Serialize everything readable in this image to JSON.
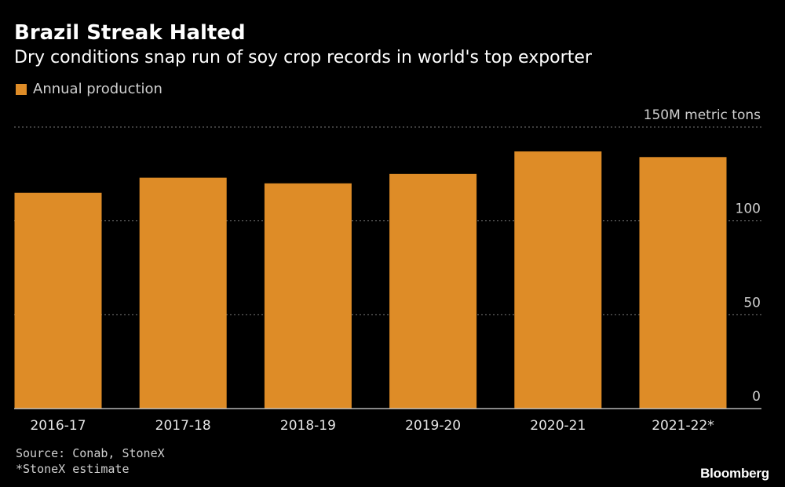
{
  "header": {
    "title": "Brazil Streak Halted",
    "subtitle": "Dry conditions snap run of soy crop records in world's top exporter"
  },
  "legend": {
    "label": "Annual production"
  },
  "chart_data": {
    "type": "bar",
    "categories": [
      "2016-17",
      "2017-18",
      "2018-19",
      "2019-20",
      "2020-21",
      "2021-22*"
    ],
    "series": [
      {
        "name": "Annual production",
        "values": [
          115,
          123,
          120,
          125,
          137,
          134
        ]
      }
    ],
    "ylim": [
      0,
      150
    ],
    "yticks": [
      0,
      50,
      100,
      150
    ],
    "ytick_labels": [
      "0",
      "50",
      "100",
      "150M metric tons"
    ],
    "color": "#de8c27",
    "grid": "dotted horizontal",
    "yaxis_position": "right",
    "legend_position": "top-left"
  },
  "footer": {
    "source": "Source: Conab, StoneX",
    "note": "*StoneX estimate",
    "brand": "Bloomberg"
  }
}
